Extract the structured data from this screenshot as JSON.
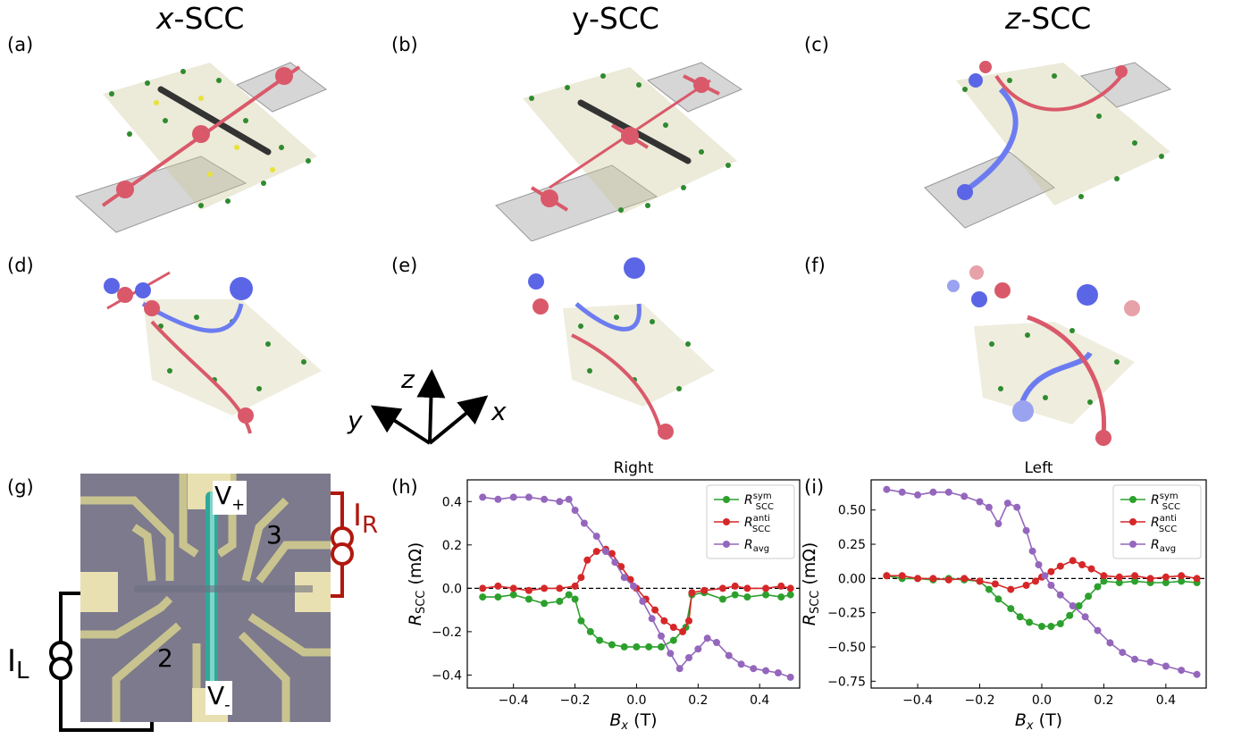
{
  "titles": {
    "a": "x",
    "b": "y",
    "c": "z",
    "suffix": "-SCC"
  },
  "panel_labels": {
    "a": "(a)",
    "b": "(b)",
    "c": "(c)",
    "d": "(d)",
    "e": "(e)",
    "f": "(f)",
    "g": "(g)",
    "h": "(h)",
    "i": "(i)"
  },
  "axes_triad": {
    "x": "x",
    "y": "y",
    "z": "z"
  },
  "device": {
    "v_plus": "V+",
    "v_minus": "V-",
    "contact_2": "2",
    "contact_3": "3",
    "i_left": "IL",
    "i_right": "IR",
    "colors": {
      "substrate": "#7c7a8c",
      "gold": "#c9c48f",
      "flake": "#2fa89a",
      "wire_left": "#000000",
      "wire_right": "#b0180e"
    }
  },
  "colors": {
    "sym": "#2ca02c",
    "anti": "#d62728",
    "avg": "#9467bd"
  },
  "chart_data": [
    {
      "type": "line",
      "title": "Right",
      "xlabel": "B_x (T)",
      "ylabel": "R_SCC (mΩ)",
      "xlim": [
        -0.55,
        0.53
      ],
      "ylim": [
        -0.46,
        0.5
      ],
      "xticks": [
        -0.4,
        -0.2,
        0.0,
        0.2,
        0.4
      ],
      "xticklabels": [
        "−0.4",
        "−0.2",
        "0.0",
        "0.2",
        "0.4"
      ],
      "yticks": [
        -0.4,
        -0.2,
        0.0,
        0.2,
        0.4
      ],
      "yticklabels": [
        "−0.4",
        "−0.2",
        "0.0",
        "0.2",
        "0.4"
      ],
      "zero_line": true,
      "legend_position": "top-right",
      "series": [
        {
          "name": "R_SCC^sym",
          "color": "#2ca02c",
          "points": [
            [
              -0.5,
              -0.04
            ],
            [
              -0.45,
              -0.04
            ],
            [
              -0.4,
              -0.03
            ],
            [
              -0.35,
              -0.05
            ],
            [
              -0.3,
              -0.07
            ],
            [
              -0.25,
              -0.06
            ],
            [
              -0.22,
              -0.03
            ],
            [
              -0.2,
              -0.05
            ],
            [
              -0.18,
              -0.15
            ],
            [
              -0.15,
              -0.2
            ],
            [
              -0.12,
              -0.24
            ],
            [
              -0.08,
              -0.26
            ],
            [
              -0.04,
              -0.27
            ],
            [
              0.0,
              -0.27
            ],
            [
              0.04,
              -0.27
            ],
            [
              0.08,
              -0.27
            ],
            [
              0.12,
              -0.24
            ],
            [
              0.16,
              -0.18
            ],
            [
              0.18,
              -0.03
            ],
            [
              0.22,
              -0.02
            ],
            [
              0.28,
              -0.05
            ],
            [
              0.32,
              -0.03
            ],
            [
              0.36,
              -0.04
            ],
            [
              0.42,
              -0.03
            ],
            [
              0.47,
              -0.04
            ],
            [
              0.5,
              -0.03
            ]
          ]
        },
        {
          "name": "R_SCC^anti",
          "color": "#d62728",
          "points": [
            [
              -0.5,
              0.0
            ],
            [
              -0.45,
              0.01
            ],
            [
              -0.4,
              0.0
            ],
            [
              -0.35,
              -0.01
            ],
            [
              -0.3,
              0.0
            ],
            [
              -0.25,
              0.0
            ],
            [
              -0.2,
              0.01
            ],
            [
              -0.18,
              0.05
            ],
            [
              -0.16,
              0.13
            ],
            [
              -0.13,
              0.17
            ],
            [
              -0.1,
              0.18
            ],
            [
              -0.08,
              0.16
            ],
            [
              -0.05,
              0.1
            ],
            [
              -0.02,
              0.04
            ],
            [
              0.0,
              0.0
            ],
            [
              0.03,
              -0.05
            ],
            [
              0.06,
              -0.1
            ],
            [
              0.09,
              -0.15
            ],
            [
              0.12,
              -0.18
            ],
            [
              0.15,
              -0.2
            ],
            [
              0.17,
              -0.15
            ],
            [
              0.18,
              -0.02
            ],
            [
              0.22,
              -0.01
            ],
            [
              0.28,
              0.0
            ],
            [
              0.32,
              0.01
            ],
            [
              0.36,
              0.0
            ],
            [
              0.42,
              0.0
            ],
            [
              0.47,
              0.01
            ],
            [
              0.5,
              0.0
            ]
          ]
        },
        {
          "name": "R_avg",
          "color": "#9467bd",
          "points": [
            [
              -0.5,
              0.42
            ],
            [
              -0.45,
              0.41
            ],
            [
              -0.4,
              0.42
            ],
            [
              -0.35,
              0.42
            ],
            [
              -0.3,
              0.41
            ],
            [
              -0.25,
              0.4
            ],
            [
              -0.22,
              0.41
            ],
            [
              -0.2,
              0.36
            ],
            [
              -0.17,
              0.3
            ],
            [
              -0.13,
              0.24
            ],
            [
              -0.1,
              0.17
            ],
            [
              -0.07,
              0.12
            ],
            [
              -0.04,
              0.05
            ],
            [
              -0.01,
              0.01
            ],
            [
              0.02,
              -0.06
            ],
            [
              0.05,
              -0.14
            ],
            [
              0.08,
              -0.22
            ],
            [
              0.11,
              -0.3
            ],
            [
              0.14,
              -0.37
            ],
            [
              0.17,
              -0.32
            ],
            [
              0.2,
              -0.28
            ],
            [
              0.23,
              -0.23
            ],
            [
              0.26,
              -0.25
            ],
            [
              0.3,
              -0.31
            ],
            [
              0.34,
              -0.35
            ],
            [
              0.38,
              -0.37
            ],
            [
              0.42,
              -0.38
            ],
            [
              0.46,
              -0.39
            ],
            [
              0.5,
              -0.41
            ]
          ]
        }
      ]
    },
    {
      "type": "line",
      "title": "Left",
      "xlabel": "B_x (T)",
      "ylabel": "R_SCC (mΩ)",
      "xlim": [
        -0.55,
        0.53
      ],
      "ylim": [
        -0.8,
        0.72
      ],
      "xticks": [
        -0.4,
        -0.2,
        0.0,
        0.2,
        0.4
      ],
      "xticklabels": [
        "−0.4",
        "−0.2",
        "0.0",
        "0.2",
        "0.4"
      ],
      "yticks": [
        -0.75,
        -0.5,
        -0.25,
        0.0,
        0.25,
        0.5
      ],
      "yticklabels": [
        "−0.75",
        "−0.50",
        "−0.25",
        "0.00",
        "0.25",
        "0.50"
      ],
      "zero_line": true,
      "legend_position": "top-right",
      "series": [
        {
          "name": "R_SCC^sym",
          "color": "#2ca02c",
          "points": [
            [
              -0.5,
              0.02
            ],
            [
              -0.45,
              0.0
            ],
            [
              -0.4,
              0.0
            ],
            [
              -0.35,
              -0.01
            ],
            [
              -0.3,
              0.0
            ],
            [
              -0.25,
              -0.01
            ],
            [
              -0.2,
              -0.02
            ],
            [
              -0.17,
              -0.08
            ],
            [
              -0.14,
              -0.15
            ],
            [
              -0.1,
              -0.22
            ],
            [
              -0.07,
              -0.28
            ],
            [
              -0.04,
              -0.32
            ],
            [
              0.0,
              -0.35
            ],
            [
              0.03,
              -0.35
            ],
            [
              0.06,
              -0.33
            ],
            [
              0.09,
              -0.27
            ],
            [
              0.12,
              -0.2
            ],
            [
              0.15,
              -0.13
            ],
            [
              0.18,
              -0.06
            ],
            [
              0.2,
              -0.02
            ],
            [
              0.25,
              -0.03
            ],
            [
              0.3,
              -0.02
            ],
            [
              0.35,
              -0.03
            ],
            [
              0.4,
              -0.03
            ],
            [
              0.45,
              -0.02
            ],
            [
              0.5,
              -0.03
            ]
          ]
        },
        {
          "name": "R_SCC^anti",
          "color": "#d62728",
          "points": [
            [
              -0.5,
              0.02
            ],
            [
              -0.45,
              0.02
            ],
            [
              -0.4,
              0.0
            ],
            [
              -0.35,
              0.0
            ],
            [
              -0.3,
              -0.01
            ],
            [
              -0.25,
              0.0
            ],
            [
              -0.2,
              -0.02
            ],
            [
              -0.15,
              -0.04
            ],
            [
              -0.1,
              -0.08
            ],
            [
              -0.05,
              -0.05
            ],
            [
              -0.02,
              -0.02
            ],
            [
              0.0,
              0.01
            ],
            [
              0.03,
              0.05
            ],
            [
              0.06,
              0.09
            ],
            [
              0.1,
              0.13
            ],
            [
              0.13,
              0.1
            ],
            [
              0.16,
              0.07
            ],
            [
              0.2,
              0.02
            ],
            [
              0.25,
              0.01
            ],
            [
              0.3,
              0.02
            ],
            [
              0.35,
              0.0
            ],
            [
              0.4,
              0.01
            ],
            [
              0.45,
              0.02
            ],
            [
              0.5,
              0.0
            ]
          ]
        },
        {
          "name": "R_avg",
          "color": "#9467bd",
          "points": [
            [
              -0.5,
              0.65
            ],
            [
              -0.45,
              0.63
            ],
            [
              -0.4,
              0.61
            ],
            [
              -0.35,
              0.63
            ],
            [
              -0.3,
              0.63
            ],
            [
              -0.25,
              0.6
            ],
            [
              -0.2,
              0.56
            ],
            [
              -0.17,
              0.52
            ],
            [
              -0.14,
              0.4
            ],
            [
              -0.11,
              0.55
            ],
            [
              -0.08,
              0.52
            ],
            [
              -0.05,
              0.35
            ],
            [
              -0.03,
              0.2
            ],
            [
              -0.01,
              0.1
            ],
            [
              0.01,
              0.02
            ],
            [
              0.03,
              -0.05
            ],
            [
              0.06,
              -0.12
            ],
            [
              0.1,
              -0.2
            ],
            [
              0.14,
              -0.28
            ],
            [
              0.18,
              -0.38
            ],
            [
              0.22,
              -0.47
            ],
            [
              0.26,
              -0.54
            ],
            [
              0.3,
              -0.59
            ],
            [
              0.35,
              -0.61
            ],
            [
              0.4,
              -0.64
            ],
            [
              0.45,
              -0.67
            ],
            [
              0.5,
              -0.7
            ]
          ]
        }
      ]
    }
  ]
}
